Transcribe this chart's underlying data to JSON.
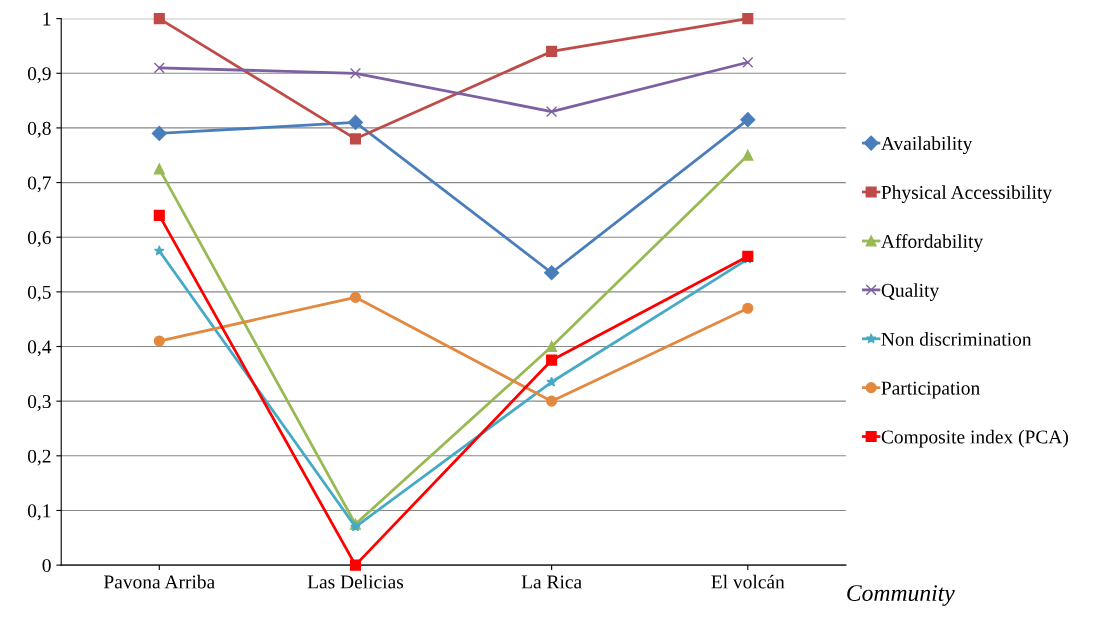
{
  "chart_data": {
    "type": "line",
    "xlabel": "Community",
    "categories": [
      "Pavona Arriba",
      "Las Delicias",
      "La Rica",
      "El volcán"
    ],
    "series": [
      {
        "name": "Availability",
        "color": "#4a7ebb",
        "marker": "diamond",
        "values": [
          0.79,
          0.81,
          0.535,
          0.815
        ]
      },
      {
        "name": "Physical Accessibility",
        "color": "#be4b48",
        "marker": "square",
        "values": [
          1.0,
          0.78,
          0.94,
          1.0
        ]
      },
      {
        "name": "Affordability",
        "color": "#98b954",
        "marker": "triangle",
        "values": [
          0.725,
          0.075,
          0.4,
          0.75
        ]
      },
      {
        "name": "Quality",
        "color": "#7d60a0",
        "marker": "cross",
        "values": [
          0.91,
          0.9,
          0.83,
          0.92
        ]
      },
      {
        "name": "Non discrimination",
        "color": "#46aac5",
        "marker": "star",
        "values": [
          0.575,
          0.07,
          0.335,
          0.56
        ]
      },
      {
        "name": "Participation",
        "color": "#e3883f",
        "marker": "circle",
        "values": [
          0.41,
          0.49,
          0.3,
          0.47
        ]
      },
      {
        "name": "Composite index (PCA)",
        "color": "#ff0000",
        "marker": "square",
        "values": [
          0.64,
          0.0,
          0.375,
          0.565
        ]
      }
    ],
    "ylim": [
      0,
      1
    ],
    "yticks": [
      {
        "value": 0,
        "label": "0"
      },
      {
        "value": 0.1,
        "label": "0,1"
      },
      {
        "value": 0.2,
        "label": "0,2"
      },
      {
        "value": 0.3,
        "label": "0,3"
      },
      {
        "value": 0.4,
        "label": "0,4"
      },
      {
        "value": 0.5,
        "label": "0,5"
      },
      {
        "value": 0.6,
        "label": "0,6"
      },
      {
        "value": 0.7,
        "label": "0,7"
      },
      {
        "value": 0.8,
        "label": "0,8"
      },
      {
        "value": 0.9,
        "label": "0,9"
      },
      {
        "value": 1,
        "label": "1"
      }
    ],
    "grid": "y",
    "legend": "right"
  }
}
